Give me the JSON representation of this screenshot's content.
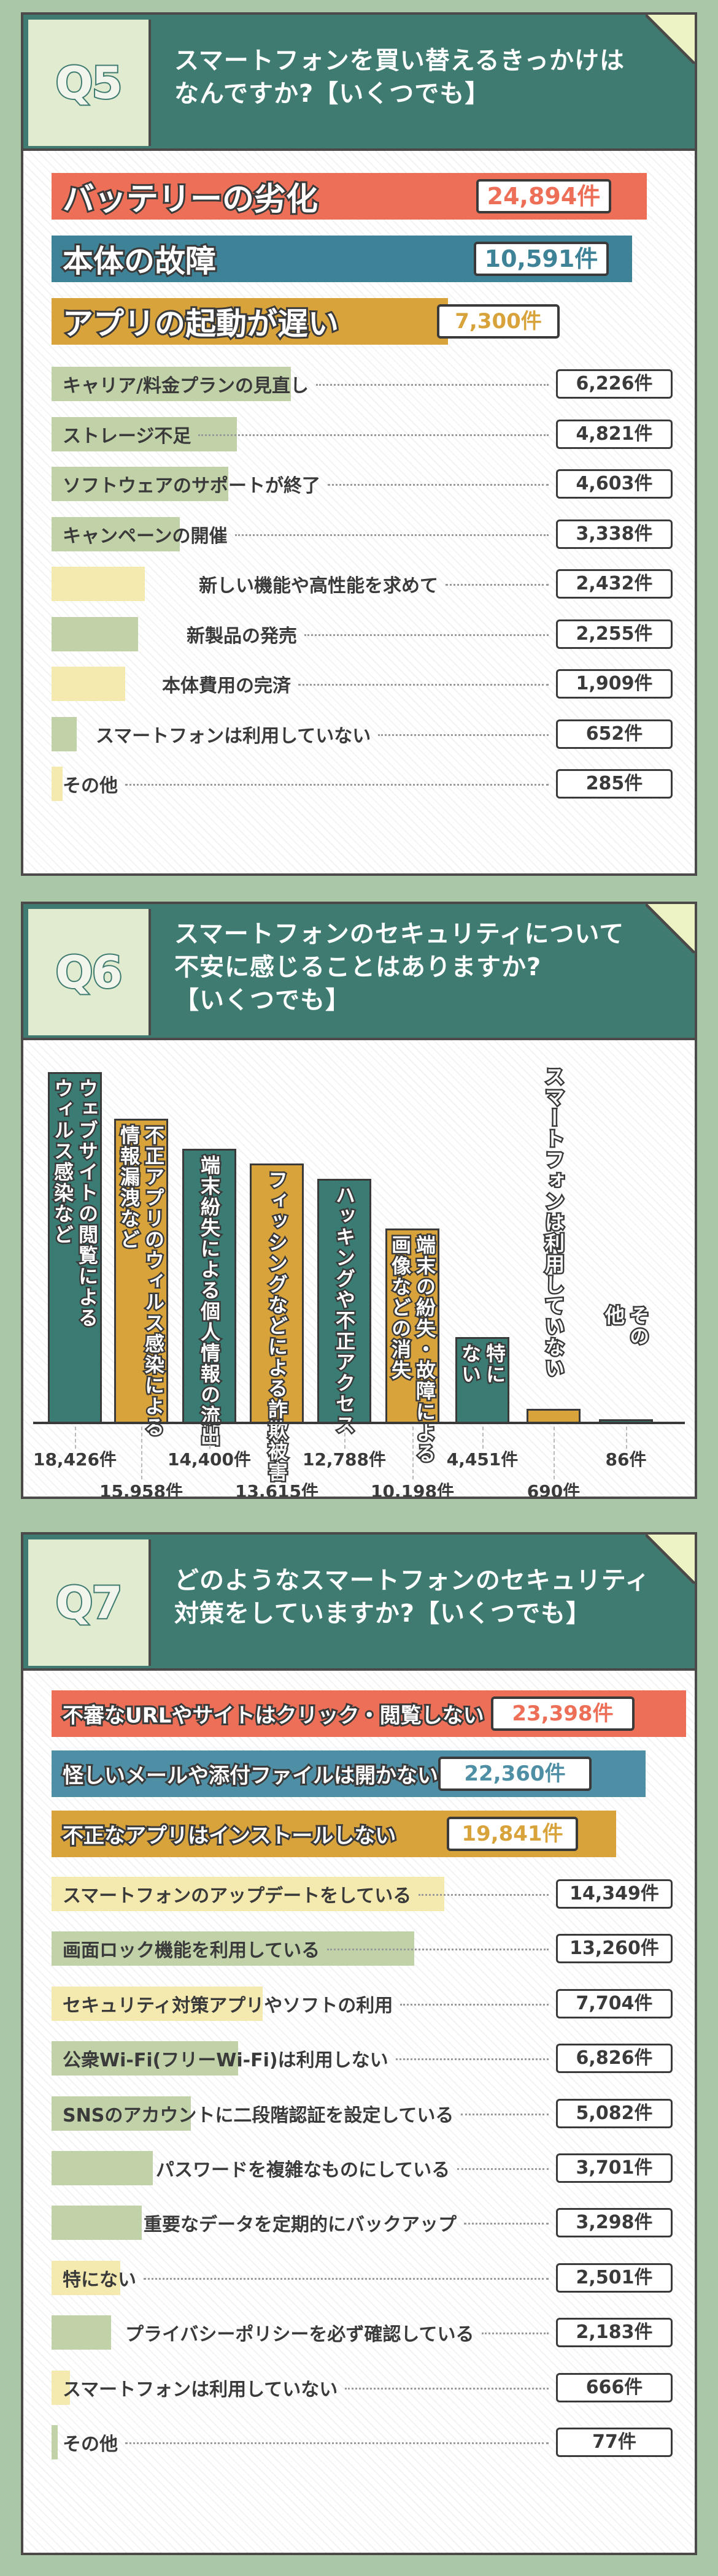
{
  "q5": {
    "badge": "Q5",
    "question_line1": "スマートフォンを買い替えるきっかけは",
    "question_line2": "なんですか?【いくつでも】",
    "chart_data": {
      "type": "bar",
      "categories": [
        "バッテリーの劣化",
        "本体の故障",
        "アプリの起動が遅い",
        "キャリア/料金プランの見直し",
        "ストレージ不足",
        "ソフトウェアのサポートが終了",
        "キャンペーンの開催",
        "新しい機能や高性能を求めて",
        "新製品の発売",
        "本体費用の完済",
        "スマートフォンは利用していない",
        "その他"
      ],
      "values": [
        24894,
        10591,
        7300,
        6226,
        4821,
        4603,
        3338,
        2432,
        2255,
        1909,
        652,
        285
      ],
      "labels": [
        "24,894件",
        "10,591件",
        "7,300件",
        "6,226件",
        "4,821件",
        "4,603件",
        "3,338件",
        "2,432件",
        "2,255件",
        "1,909件",
        "652件",
        "285件"
      ]
    }
  },
  "q6": {
    "badge": "Q6",
    "question_line1": "スマートフォンのセキュリティについて",
    "question_line2": "不安に感じることはありますか?",
    "question_line3": "【いくつでも】",
    "chart_data": {
      "type": "bar",
      "orientation": "vertical",
      "categories": [
        "ウェブサイトの閲覧による\nウィルス感染など",
        "不正アプリのウィルス感染による\n情報漏洩など",
        "端末紛失による個人情報の流出",
        "フィッシングなどによる詐欺被害",
        "ハッキングや不正アクセス",
        "端末の紛失・故障による\n画像などの消失",
        "特に\nない",
        "スマートフォンは利用していない",
        "その\n他"
      ],
      "values": [
        18426,
        15958,
        14400,
        13615,
        12788,
        10198,
        4451,
        690,
        86
      ],
      "labels": [
        "18,426件",
        "15,958件",
        "14,400件",
        "13,615件",
        "12,788件",
        "10,198件",
        "4,451件",
        "690件",
        "86件"
      ]
    }
  },
  "q7": {
    "badge": "Q7",
    "question_line1": "どのようなスマートフォンのセキュリティ",
    "question_line2": "対策をしていますか?【いくつでも】",
    "chart_data": {
      "type": "bar",
      "categories": [
        "不審なURLやサイトはクリック・閲覧しない",
        "怪しいメールや添付ファイルは開かない",
        "不正なアプリはインストールしない",
        "スマートフォンのアップデートをしている",
        "画面ロック機能を利用している",
        "セキュリティ対策アプリやソフトの利用",
        "公衆Wi-Fi(フリーWi-Fi)は利用しない",
        "SNSのアカウントに二段階認証を設定している",
        "パスワードを複雑なものにしている",
        "重要なデータを定期的にバックアップ",
        "特にない",
        "プライバシーポリシーを必ず確認している",
        "スマートフォンは利用していない",
        "その他"
      ],
      "values": [
        23398,
        22360,
        19841,
        14349,
        13260,
        7704,
        6826,
        5082,
        3701,
        3298,
        2501,
        2183,
        666,
        77
      ],
      "labels": [
        "23,398件",
        "22,360件",
        "19,841件",
        "14,349件",
        "13,260件",
        "7,704件",
        "6,826件",
        "5,082件",
        "3,701件",
        "3,298件",
        "2,501件",
        "2,183件",
        "666件",
        "77件"
      ]
    }
  },
  "colors": {
    "header": "#3f7b70",
    "badge_bg": "#e0ebd0",
    "red": "#ee6f57",
    "blue": "#3e8298",
    "gold": "#d9a33c",
    "sage": "#c1d1a8",
    "cream": "#f4e9af",
    "teal_bar": "#3a7c74",
    "light_blue": "#4e8fa5",
    "page_bg": "#aac7a7"
  }
}
